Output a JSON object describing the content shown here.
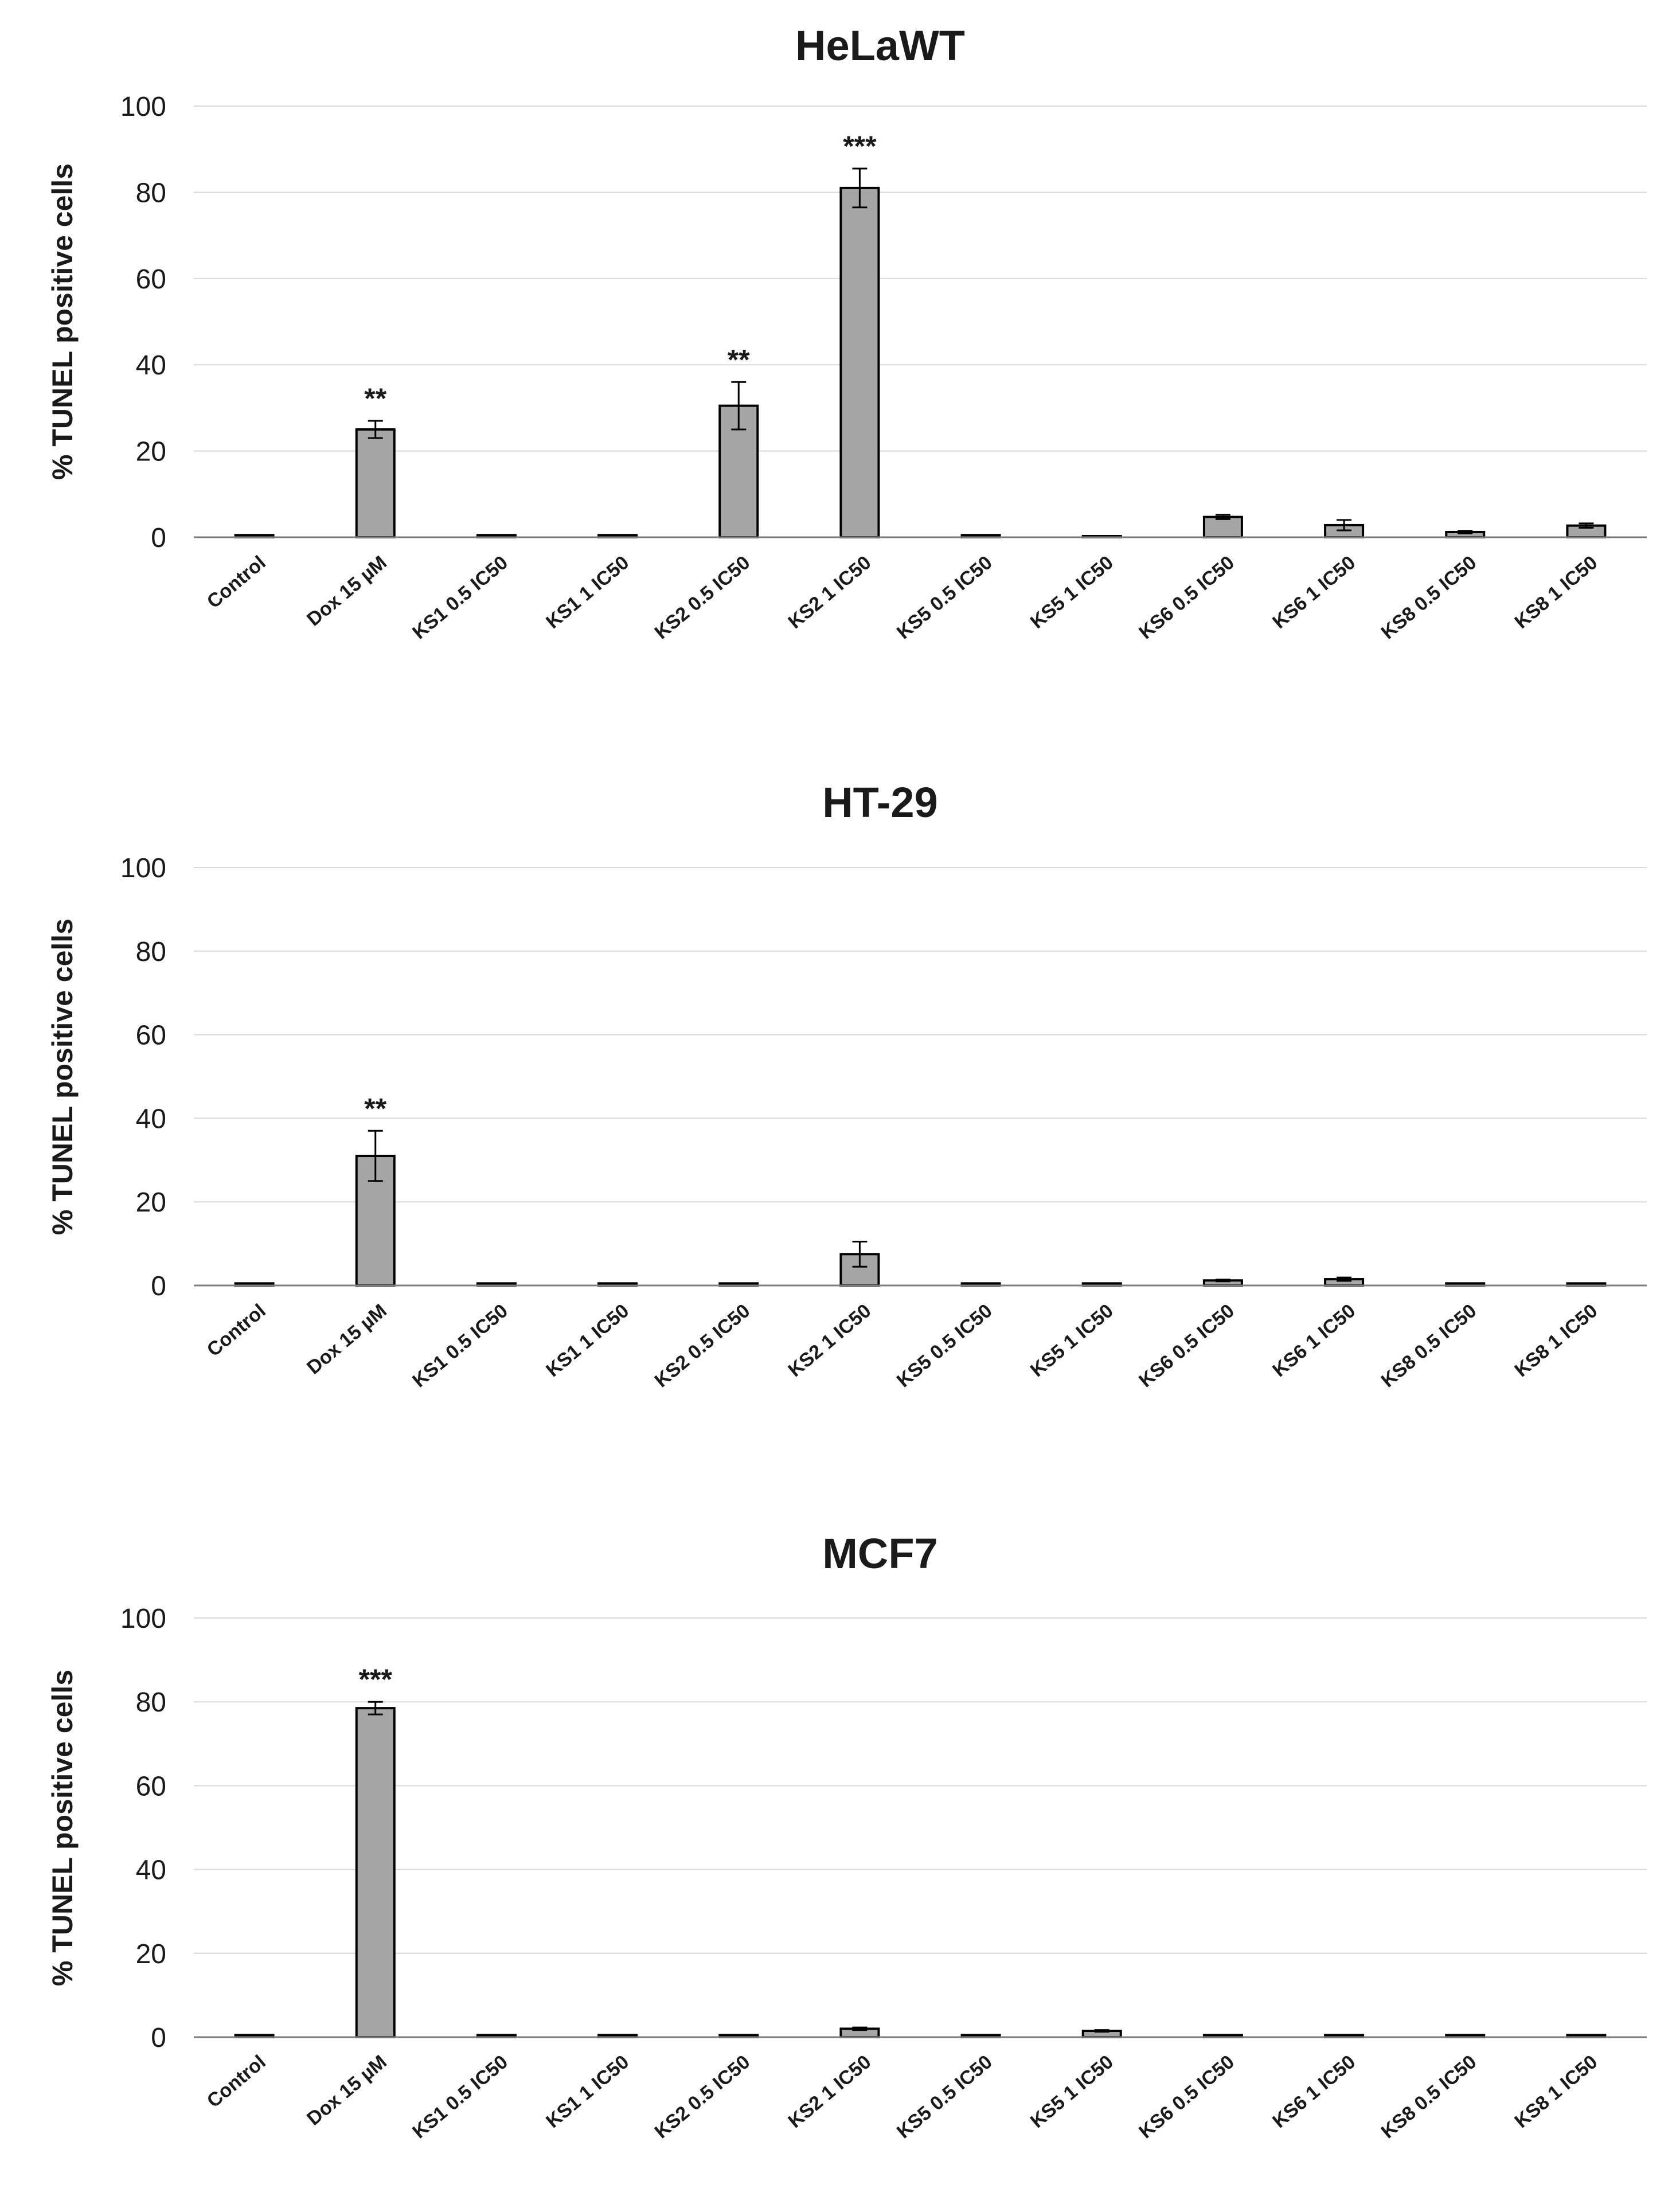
{
  "chart_data": [
    {
      "type": "bar",
      "title": "HeLaWT",
      "ylabel": "% TUNEL positive cells",
      "xlabel": "",
      "ylim": [
        0,
        100
      ],
      "yticks": [
        0,
        20,
        40,
        60,
        80,
        100
      ],
      "grid": true,
      "categories": [
        "Control",
        "Dox 15 µM",
        "KS1  0.5 IC50",
        "KS1  1 IC50",
        "KS2  0.5 IC50",
        "KS2  1 IC50",
        "KS5  0.5 IC50",
        "KS5  1 IC50",
        "KS6  0.5 IC50",
        "KS6  1 IC50",
        "KS8  0.5 IC50",
        "KS8  1 IC50"
      ],
      "values": [
        0.5,
        25,
        0.5,
        0.5,
        30.5,
        81,
        0.5,
        0,
        4.7,
        2.8,
        1.2,
        2.7
      ],
      "errors": [
        0,
        2,
        0,
        0,
        5.5,
        4.5,
        0,
        0,
        0.5,
        1.2,
        0.3,
        0.5
      ],
      "significance": [
        "",
        "**",
        "",
        "",
        "**",
        "***",
        "",
        "",
        "",
        "",
        "",
        ""
      ]
    },
    {
      "type": "bar",
      "title": "HT-29",
      "ylabel": "% TUNEL positive cells",
      "xlabel": "",
      "ylim": [
        0,
        100
      ],
      "yticks": [
        0,
        20,
        40,
        60,
        80,
        100
      ],
      "grid": true,
      "categories": [
        "Control",
        "Dox 15 µM",
        "KS1  0.5 IC50",
        "KS1  1 IC50",
        "KS2  0.5 IC50",
        "KS2  1 IC50",
        "KS5  0.5 IC50",
        "KS5  1 IC50",
        "KS6  0.5 IC50",
        "KS6  1 IC50",
        "KS8  0.5 IC50",
        "KS8  1 IC50"
      ],
      "values": [
        0.5,
        31,
        0.5,
        0.5,
        0.5,
        7.5,
        0.5,
        0.5,
        1.2,
        1.5,
        0.5,
        0.5
      ],
      "errors": [
        0,
        6,
        0,
        0,
        0,
        3,
        0,
        0,
        0.2,
        0.4,
        0,
        0
      ],
      "significance": [
        "",
        "**",
        "",
        "",
        "",
        "",
        "",
        "",
        "",
        "",
        "",
        ""
      ]
    },
    {
      "type": "bar",
      "title": "MCF7",
      "ylabel": "% TUNEL  positive cells",
      "xlabel": "",
      "ylim": [
        0,
        100
      ],
      "yticks": [
        0,
        20,
        40,
        60,
        80,
        100
      ],
      "grid": true,
      "categories": [
        "Control",
        "Dox 15 µM",
        "KS1  0.5 IC50",
        "KS1  1 IC50",
        "KS2  0.5 IC50",
        "KS2  1 IC50",
        "KS5  0.5 IC50",
        "KS5  1 IC50",
        "KS6  0.5 IC50",
        "KS6  1 IC50",
        "KS8  0.5 IC50",
        "KS8  1 IC50"
      ],
      "values": [
        0.5,
        78.5,
        0.5,
        0.5,
        0.5,
        2,
        0.5,
        1.5,
        0.5,
        0.5,
        0.5,
        0.5
      ],
      "errors": [
        0,
        1.5,
        0,
        0,
        0,
        0.3,
        0,
        0.2,
        0,
        0,
        0,
        0
      ],
      "significance": [
        "",
        "***",
        "",
        "",
        "",
        "",
        "",
        "",
        "",
        "",
        "",
        ""
      ]
    }
  ]
}
